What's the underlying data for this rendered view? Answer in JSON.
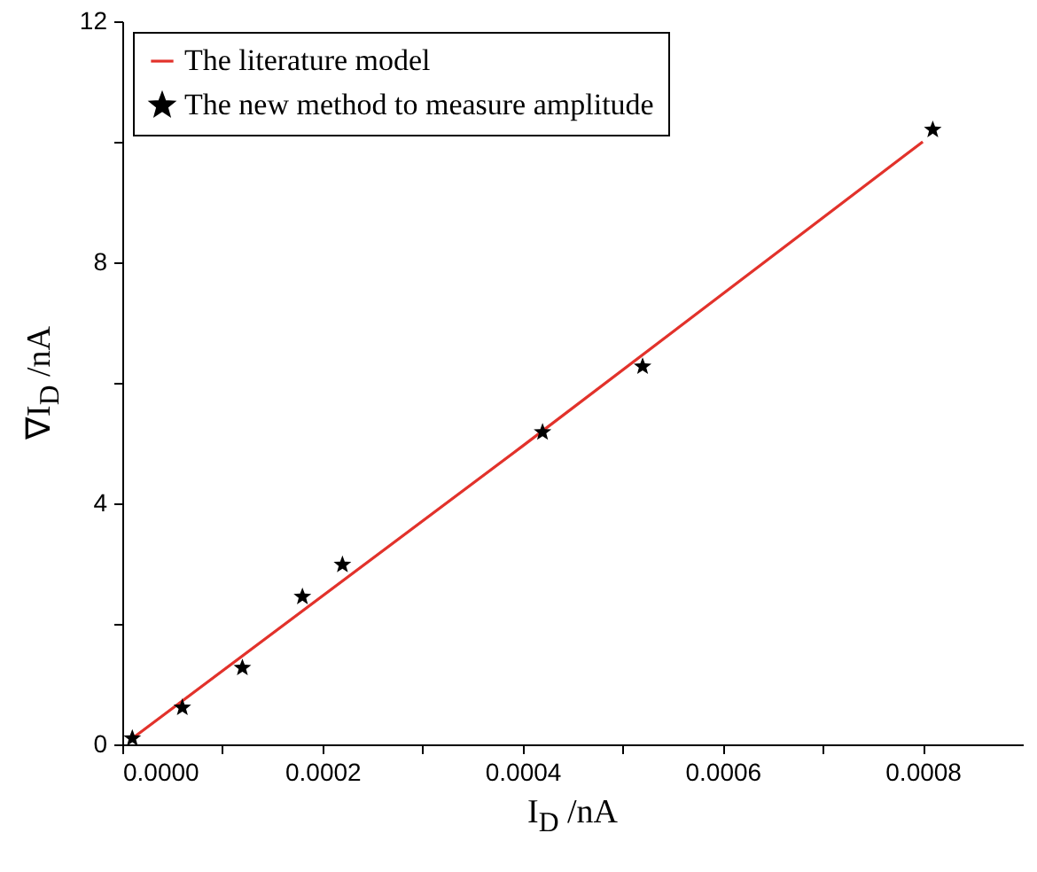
{
  "chart_data": {
    "type": "scatter",
    "xlabel": "I$_{D}$ /nA",
    "ylabel": "∇I$_{D}$ /nA",
    "xlim": [
      0,
      0.0009
    ],
    "ylim": [
      0,
      12
    ],
    "xticks": [
      {
        "value": 0,
        "label": "0.0000"
      },
      {
        "value": 0.0001,
        "label": null
      },
      {
        "value": 0.0002,
        "label": "0.0002"
      },
      {
        "value": 0.0003,
        "label": null
      },
      {
        "value": 0.0004,
        "label": "0.0004"
      },
      {
        "value": 0.0005,
        "label": null
      },
      {
        "value": 0.0006,
        "label": "0.0006"
      },
      {
        "value": 0.0007,
        "label": null
      },
      {
        "value": 0.0008,
        "label": "0.0008"
      }
    ],
    "yticks": [
      0,
      {
        "value": 2,
        "label": null
      },
      4,
      {
        "value": 6,
        "label": null
      },
      8,
      {
        "value": 10,
        "label": null
      },
      12
    ],
    "legend": "top left",
    "grid": false,
    "series": [
      {
        "name": "The literature model",
        "type": "line",
        "color": "#e2322b",
        "line_style": "solid",
        "x": [
          1e-05,
          0.0004,
          0.0008
        ],
        "values": [
          0.1,
          4.95,
          10.0
        ]
      },
      {
        "name": "The new method to measure amplitude",
        "color": "#000000",
        "marker": "star",
        "x": [
          1e-05,
          6e-05,
          0.00012,
          0.00018,
          0.00022,
          0.00042,
          0.00052,
          0.00081
        ],
        "values": [
          0.1,
          0.61,
          1.27,
          2.45,
          2.98,
          5.18,
          6.27,
          10.2
        ]
      }
    ]
  }
}
